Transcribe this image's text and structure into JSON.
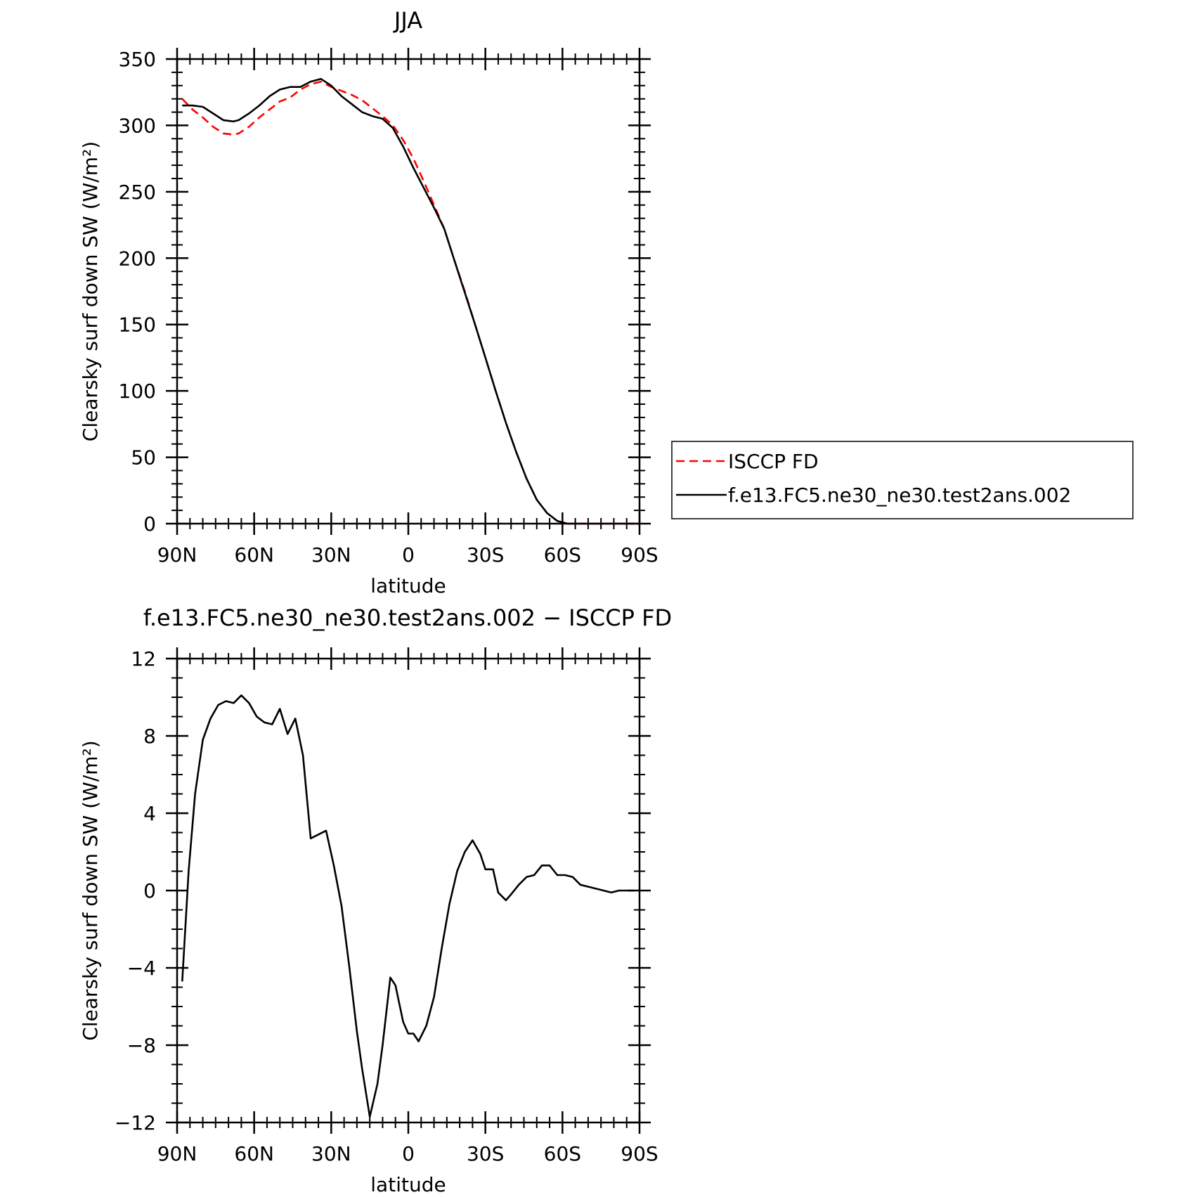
{
  "chart_data": [
    {
      "type": "line",
      "title": "JJA",
      "xlabel": "latitude",
      "ylabel": "Clearsky surf down SW (W/m²)",
      "xlim": [
        90,
        -90
      ],
      "ylim": [
        0,
        350
      ],
      "xticks": [
        {
          "value": 90,
          "label": "90N"
        },
        {
          "value": 60,
          "label": "60N"
        },
        {
          "value": 30,
          "label": "30N"
        },
        {
          "value": 0,
          "label": "0"
        },
        {
          "value": -30,
          "label": "30S"
        },
        {
          "value": -60,
          "label": "60S"
        },
        {
          "value": -90,
          "label": "90S"
        }
      ],
      "yticks": [
        {
          "value": 0,
          "label": "0"
        },
        {
          "value": 50,
          "label": "50"
        },
        {
          "value": 100,
          "label": "100"
        },
        {
          "value": 150,
          "label": "150"
        },
        {
          "value": 200,
          "label": "200"
        },
        {
          "value": 250,
          "label": "250"
        },
        {
          "value": 300,
          "label": "300"
        },
        {
          "value": 350,
          "label": "350"
        }
      ],
      "legend": {
        "placement": "right"
      },
      "series": [
        {
          "name": "ISCCP FD",
          "color": "#ff0000",
          "dash": "dashed",
          "x": [
            88,
            84,
            80,
            76,
            72,
            68,
            66,
            62,
            58,
            54,
            50,
            46,
            42,
            38,
            34,
            30,
            26,
            22,
            18,
            14,
            10,
            6,
            2,
            -2,
            -6,
            -10,
            -14,
            -18,
            -22,
            -26,
            -30,
            -34,
            -38,
            -42,
            -46,
            -50,
            -54,
            -58,
            -62,
            -66,
            -70,
            -74,
            -78,
            -82,
            -86,
            -88
          ],
          "y": [
            320,
            312,
            306,
            299,
            294,
            293,
            294,
            299,
            306,
            312,
            318,
            321,
            327,
            331,
            333,
            329,
            326,
            323,
            319,
            313,
            307,
            300,
            289,
            275,
            258,
            240,
            222,
            198,
            175,
            150,
            125,
            100,
            76,
            54,
            34,
            18,
            8,
            2,
            0,
            0,
            0,
            0,
            0,
            0,
            0,
            0
          ]
        },
        {
          "name": "f.e13.FC5.ne30_ne30.test2ans.002",
          "color": "#000000",
          "dash": "solid",
          "x": [
            88,
            84,
            80,
            76,
            72,
            68,
            66,
            62,
            58,
            54,
            50,
            46,
            42,
            38,
            34,
            30,
            26,
            22,
            18,
            14,
            10,
            6,
            2,
            -2,
            -6,
            -10,
            -14,
            -18,
            -22,
            -26,
            -30,
            -34,
            -38,
            -42,
            -46,
            -50,
            -54,
            -58,
            -62,
            -66,
            -70,
            -74,
            -78,
            -82,
            -86,
            -88
          ],
          "y": [
            315,
            315,
            314,
            309,
            304,
            303,
            304,
            309,
            315,
            322,
            327,
            329,
            329,
            333,
            335,
            330,
            322,
            316,
            310,
            307,
            305,
            298,
            284,
            268,
            253,
            238,
            222,
            198,
            174,
            150,
            125,
            100,
            76,
            54,
            34,
            18,
            8,
            2,
            0,
            0,
            0,
            0,
            0,
            0,
            0,
            0
          ]
        }
      ]
    },
    {
      "type": "line",
      "title": "f.e13.FC5.ne30_ne30.test2ans.002 − ISCCP FD",
      "xlabel": "latitude",
      "ylabel": "Clearsky surf down SW (W/m²)",
      "xlim": [
        90,
        -90
      ],
      "ylim": [
        -12,
        12
      ],
      "xticks": [
        {
          "value": 90,
          "label": "90N"
        },
        {
          "value": 60,
          "label": "60N"
        },
        {
          "value": 30,
          "label": "30N"
        },
        {
          "value": 0,
          "label": "0"
        },
        {
          "value": -30,
          "label": "30S"
        },
        {
          "value": -60,
          "label": "60S"
        },
        {
          "value": -90,
          "label": "90S"
        }
      ],
      "yticks": [
        {
          "value": -12,
          "label": "−12"
        },
        {
          "value": -8,
          "label": "−8"
        },
        {
          "value": -4,
          "label": "−4"
        },
        {
          "value": 0,
          "label": "0"
        },
        {
          "value": 4,
          "label": "4"
        },
        {
          "value": 8,
          "label": "8"
        },
        {
          "value": 12,
          "label": "12"
        }
      ],
      "series": [
        {
          "color": "#000000",
          "dash": "solid",
          "x": [
            88,
            85.5,
            83,
            80,
            77,
            74,
            71,
            68,
            65,
            62,
            59,
            56,
            53,
            50,
            47,
            44,
            41,
            38,
            35,
            32,
            29,
            26,
            23,
            20,
            18,
            15,
            12,
            10,
            7,
            5,
            2,
            0,
            -2,
            -4,
            -7,
            -10,
            -13,
            -16,
            -19,
            -22,
            -25,
            -28,
            -30,
            -33,
            -35,
            -38,
            -40,
            -43,
            -46,
            -49,
            -52,
            -55,
            -58,
            -61,
            -64,
            -67,
            -70,
            -73,
            -76,
            -79,
            -82,
            -85,
            -88
          ],
          "y": [
            -4.7,
            1.0,
            5.0,
            7.8,
            8.9,
            9.6,
            9.8,
            9.7,
            10.1,
            9.7,
            9.0,
            8.7,
            8.6,
            9.4,
            8.1,
            8.9,
            7.0,
            2.7,
            2.9,
            3.1,
            1.3,
            -0.8,
            -3.9,
            -7.3,
            -9.2,
            -11.7,
            -10.0,
            -8.0,
            -4.5,
            -4.9,
            -6.8,
            -7.4,
            -7.4,
            -7.8,
            -7.0,
            -5.5,
            -3.0,
            -0.7,
            1.0,
            2.0,
            2.6,
            1.9,
            1.1,
            1.1,
            -0.1,
            -0.5,
            -0.2,
            0.3,
            0.7,
            0.8,
            1.3,
            1.3,
            0.8,
            0.8,
            0.7,
            0.3,
            0.2,
            0.1,
            0.0,
            -0.1,
            0.0,
            0.0,
            0.0
          ]
        }
      ]
    }
  ]
}
